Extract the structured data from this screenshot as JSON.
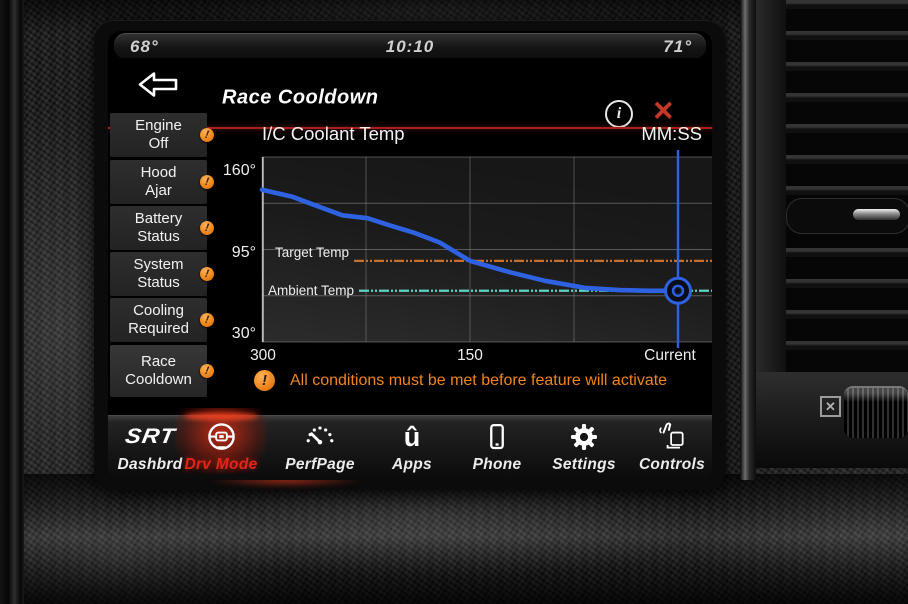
{
  "status_bar": {
    "left_temp": "68°",
    "time": "10:10",
    "right_temp": "71°"
  },
  "header": {
    "title": "Race Cooldown"
  },
  "sidebar": {
    "items": [
      {
        "line1": "Engine",
        "line2": "Off"
      },
      {
        "line1": "Hood",
        "line2": "Ajar"
      },
      {
        "line1": "Battery",
        "line2": "Status"
      },
      {
        "line1": "System",
        "line2": "Status"
      },
      {
        "line1": "Cooling",
        "line2": "Required"
      },
      {
        "line1": "Race",
        "line2": "Cooldown",
        "selected": true
      }
    ]
  },
  "chart_data": {
    "type": "line",
    "title": "I/C Coolant Temp",
    "x_unit": "MM:SS",
    "x_range": [
      300,
      0
    ],
    "y_range": [
      30,
      160
    ],
    "y_gridlines": [
      160,
      127.5,
      95,
      62.5,
      30
    ],
    "x_gridlines": [
      300,
      225,
      150,
      75
    ],
    "y_ticks": [
      {
        "value": 160,
        "label": "160°"
      },
      {
        "value": 95,
        "label": "95°"
      },
      {
        "value": 30,
        "label": "30°"
      }
    ],
    "x_ticks": [
      {
        "value": 300,
        "label": "300"
      },
      {
        "value": 150,
        "label": "150"
      },
      {
        "value": 0,
        "label": "Current"
      }
    ],
    "series": [
      {
        "name": "I/C Coolant Temp",
        "color": "#2e62e0",
        "points": [
          [
            300,
            137
          ],
          [
            278,
            132
          ],
          [
            256,
            124
          ],
          [
            242,
            119
          ],
          [
            224,
            117
          ],
          [
            208,
            112
          ],
          [
            191,
            107
          ],
          [
            172,
            100
          ],
          [
            150,
            87
          ],
          [
            121,
            79
          ],
          [
            96,
            73
          ],
          [
            67,
            68
          ],
          [
            42,
            66.5
          ],
          [
            20,
            66
          ],
          [
            0,
            66
          ]
        ]
      },
      {
        "name": "Target Temp",
        "color": "#c8702b",
        "value": 87
      },
      {
        "name": "Ambient Temp",
        "color": "#5fd4c2",
        "value": 66
      }
    ],
    "current_marker": {
      "x": 0,
      "y": 66
    },
    "legend_position": "inline-left",
    "grid": true
  },
  "warning": {
    "text": "All conditions must be met before feature will activate"
  },
  "nav": {
    "items": [
      {
        "label": "Dashbrd",
        "icon": "srt-logo",
        "logo_text": "SRT"
      },
      {
        "label": "Drv Mode",
        "icon": "steering-wheel",
        "active": true
      },
      {
        "label": "PerfPage",
        "icon": "gauge"
      },
      {
        "label": "Apps",
        "icon": "uconnect",
        "glyph": "û"
      },
      {
        "label": "Phone",
        "icon": "phone"
      },
      {
        "label": "Settings",
        "icon": "gear"
      },
      {
        "label": "Controls",
        "icon": "hand"
      }
    ]
  },
  "vent": {
    "airbag_symbol": "✕"
  },
  "colors": {
    "accent_orange": "#ee8418",
    "accent_blue": "#2e62e0",
    "accent_cyan": "#5fd4c2",
    "alert_red": "#c5392a",
    "nav_active_red": "#e3261a"
  }
}
